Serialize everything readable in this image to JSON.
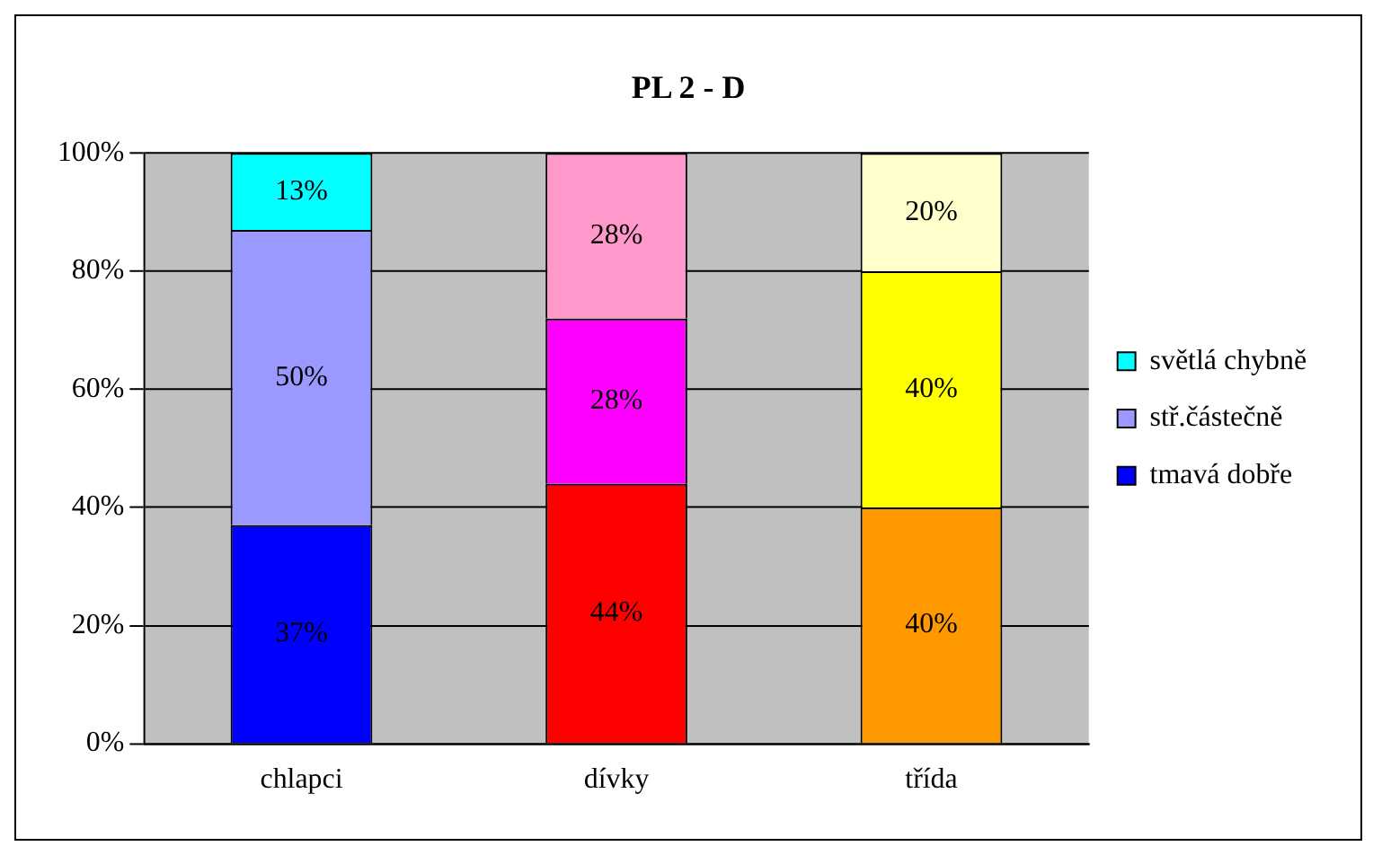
{
  "chart_data": {
    "type": "bar",
    "title": "PL 2 - D",
    "categories": [
      "chlapci",
      "dívky",
      "třída"
    ],
    "stacked": true,
    "series": [
      {
        "name": "tmavá dobře",
        "color": "#0000ff",
        "colors": [
          "#0000ff",
          "#ff0000",
          "#ff9900"
        ],
        "values": [
          37,
          44,
          40
        ],
        "value_labels": [
          "37%",
          "44%",
          "40%"
        ]
      },
      {
        "name": "stř.částečně",
        "color": "#9999ff",
        "colors": [
          "#9999ff",
          "#ff00ff",
          "#ffff00"
        ],
        "values": [
          50,
          28,
          40
        ],
        "value_labels": [
          "50%",
          "28%",
          "40%"
        ]
      },
      {
        "name": "světlá chybně",
        "color": "#00ffff",
        "colors": [
          "#00ffff",
          "#ff99cc",
          "#ffffcc"
        ],
        "values": [
          13,
          28,
          20
        ],
        "value_labels": [
          "13%",
          "28%",
          "20%"
        ]
      }
    ],
    "ylim": [
      0,
      100
    ],
    "yticks": [
      {
        "value": 0,
        "label": "0%"
      },
      {
        "value": 20,
        "label": "20%"
      },
      {
        "value": 40,
        "label": "40%"
      },
      {
        "value": 60,
        "label": "60%"
      },
      {
        "value": 80,
        "label": "80%"
      },
      {
        "value": 100,
        "label": "100%"
      }
    ],
    "grid": "y",
    "legend": "right"
  }
}
